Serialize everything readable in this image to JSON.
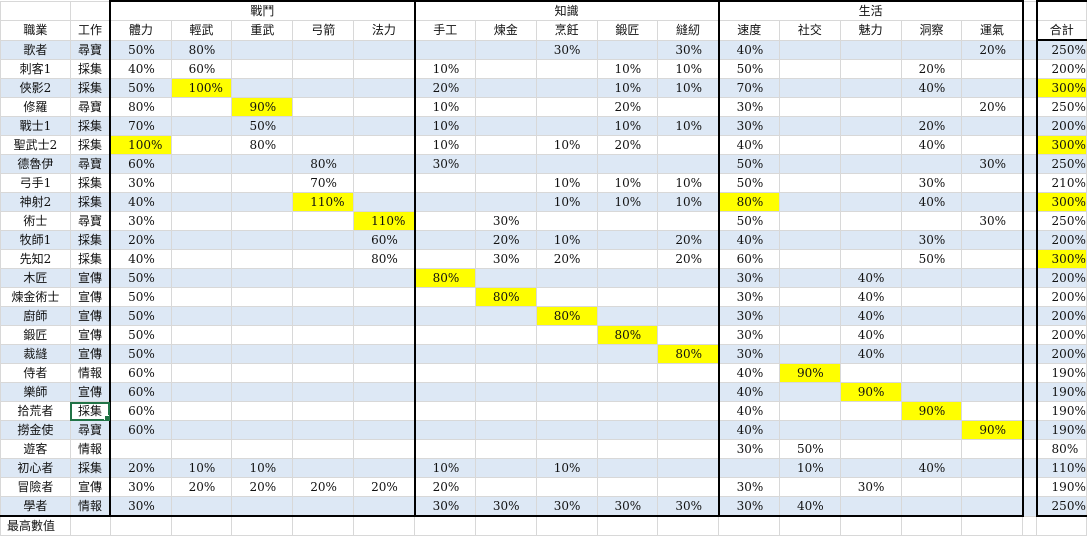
{
  "sheet": {
    "header": {
      "profession": "職業",
      "work": "工作",
      "groups": [
        "戰鬥",
        "知識",
        "生活"
      ],
      "columns": [
        "體力",
        "輕武",
        "重武",
        "弓箭",
        "法力",
        "手工",
        "煉金",
        "烹飪",
        "鍛匠",
        "縫紉",
        "速度",
        "社交",
        "魅力",
        "洞察",
        "運氣"
      ],
      "total": "合計"
    },
    "rows": [
      {
        "name": "歌者",
        "job": "尋寶",
        "values": [
          "50%",
          "80%",
          "",
          "",
          "",
          "",
          "",
          "30%",
          "",
          "30%",
          "40%",
          "",
          "",
          "",
          "20%"
        ],
        "total": "250%",
        "hl": [],
        "hl_total": false
      },
      {
        "name": "刺客1",
        "job": "採集",
        "values": [
          "40%",
          "60%",
          "",
          "",
          "",
          "10%",
          "",
          "",
          "10%",
          "10%",
          "50%",
          "",
          "",
          "20%",
          ""
        ],
        "total": "200%",
        "hl": [],
        "hl_total": false
      },
      {
        "name": "俠影2",
        "job": "採集",
        "values": [
          "50%",
          "100%",
          "",
          "",
          "",
          "20%",
          "",
          "",
          "10%",
          "10%",
          "70%",
          "",
          "",
          "40%",
          ""
        ],
        "total": "300%",
        "hl": [
          1
        ],
        "hl_total": true
      },
      {
        "name": "修羅",
        "job": "尋寶",
        "values": [
          "80%",
          "",
          "90%",
          "",
          "",
          "10%",
          "",
          "",
          "20%",
          "",
          "30%",
          "",
          "",
          "",
          "20%"
        ],
        "total": "250%",
        "hl": [
          2
        ],
        "hl_total": false
      },
      {
        "name": "戰士1",
        "job": "採集",
        "values": [
          "70%",
          "",
          "50%",
          "",
          "",
          "10%",
          "",
          "",
          "10%",
          "10%",
          "30%",
          "",
          "",
          "20%",
          ""
        ],
        "total": "200%",
        "hl": [],
        "hl_total": false
      },
      {
        "name": "聖武士2",
        "job": "採集",
        "values": [
          "100%",
          "",
          "80%",
          "",
          "",
          "10%",
          "",
          "10%",
          "20%",
          "",
          "40%",
          "",
          "",
          "40%",
          ""
        ],
        "total": "300%",
        "hl": [
          0
        ],
        "hl_total": true
      },
      {
        "name": "德魯伊",
        "job": "尋寶",
        "values": [
          "60%",
          "",
          "",
          "80%",
          "",
          "30%",
          "",
          "",
          "",
          "",
          "50%",
          "",
          "",
          "",
          "30%"
        ],
        "total": "250%",
        "hl": [],
        "hl_total": false
      },
      {
        "name": "弓手1",
        "job": "採集",
        "values": [
          "30%",
          "",
          "",
          "70%",
          "",
          "",
          "",
          "10%",
          "10%",
          "10%",
          "50%",
          "",
          "",
          "30%",
          ""
        ],
        "total": "210%",
        "hl": [],
        "hl_total": false
      },
      {
        "name": "神射2",
        "job": "採集",
        "values": [
          "40%",
          "",
          "",
          "110%",
          "",
          "",
          "",
          "10%",
          "10%",
          "10%",
          "80%",
          "",
          "",
          "40%",
          ""
        ],
        "total": "300%",
        "hl": [
          3,
          10
        ],
        "hl_total": true
      },
      {
        "name": "術士",
        "job": "尋寶",
        "values": [
          "30%",
          "",
          "",
          "",
          "110%",
          "",
          "30%",
          "",
          "",
          "",
          "50%",
          "",
          "",
          "",
          "30%"
        ],
        "total": "250%",
        "hl": [
          4
        ],
        "hl_total": false
      },
      {
        "name": "牧師1",
        "job": "採集",
        "values": [
          "20%",
          "",
          "",
          "",
          "60%",
          "",
          "20%",
          "10%",
          "",
          "20%",
          "40%",
          "",
          "",
          "30%",
          ""
        ],
        "total": "200%",
        "hl": [],
        "hl_total": false
      },
      {
        "name": "先知2",
        "job": "採集",
        "values": [
          "40%",
          "",
          "",
          "",
          "80%",
          "",
          "30%",
          "20%",
          "",
          "20%",
          "60%",
          "",
          "",
          "50%",
          ""
        ],
        "total": "300%",
        "hl": [],
        "hl_total": true
      },
      {
        "name": "木匠",
        "job": "宣傳",
        "values": [
          "50%",
          "",
          "",
          "",
          "",
          "80%",
          "",
          "",
          "",
          "",
          "30%",
          "",
          "40%",
          "",
          ""
        ],
        "total": "200%",
        "hl": [
          5
        ],
        "hl_total": false
      },
      {
        "name": "煉金術士",
        "job": "宣傳",
        "values": [
          "50%",
          "",
          "",
          "",
          "",
          "",
          "80%",
          "",
          "",
          "",
          "30%",
          "",
          "40%",
          "",
          ""
        ],
        "total": "200%",
        "hl": [
          6
        ],
        "hl_total": false
      },
      {
        "name": "廚師",
        "job": "宣傳",
        "values": [
          "50%",
          "",
          "",
          "",
          "",
          "",
          "",
          "80%",
          "",
          "",
          "30%",
          "",
          "40%",
          "",
          ""
        ],
        "total": "200%",
        "hl": [
          7
        ],
        "hl_total": false
      },
      {
        "name": "鍛匠",
        "job": "宣傳",
        "values": [
          "50%",
          "",
          "",
          "",
          "",
          "",
          "",
          "",
          "80%",
          "",
          "30%",
          "",
          "40%",
          "",
          ""
        ],
        "total": "200%",
        "hl": [
          8
        ],
        "hl_total": false
      },
      {
        "name": "裁縫",
        "job": "宣傳",
        "values": [
          "50%",
          "",
          "",
          "",
          "",
          "",
          "",
          "",
          "",
          "80%",
          "30%",
          "",
          "40%",
          "",
          ""
        ],
        "total": "200%",
        "hl": [
          9
        ],
        "hl_total": false
      },
      {
        "name": "侍者",
        "job": "情報",
        "values": [
          "60%",
          "",
          "",
          "",
          "",
          "",
          "",
          "",
          "",
          "",
          "40%",
          "90%",
          "",
          "",
          ""
        ],
        "total": "190%",
        "hl": [
          11
        ],
        "hl_total": false
      },
      {
        "name": "樂師",
        "job": "宣傳",
        "values": [
          "60%",
          "",
          "",
          "",
          "",
          "",
          "",
          "",
          "",
          "",
          "40%",
          "",
          "90%",
          "",
          ""
        ],
        "total": "190%",
        "hl": [
          12
        ],
        "hl_total": false
      },
      {
        "name": "拾荒者",
        "job": "採集",
        "values": [
          "60%",
          "",
          "",
          "",
          "",
          "",
          "",
          "",
          "",
          "",
          "40%",
          "",
          "",
          "90%",
          ""
        ],
        "total": "190%",
        "hl": [
          13
        ],
        "hl_total": false
      },
      {
        "name": "撈金使",
        "job": "尋寶",
        "values": [
          "60%",
          "",
          "",
          "",
          "",
          "",
          "",
          "",
          "",
          "",
          "40%",
          "",
          "",
          "",
          "90%"
        ],
        "total": "190%",
        "hl": [
          14
        ],
        "hl_total": false
      },
      {
        "name": "遊客",
        "job": "情報",
        "values": [
          "",
          "",
          "",
          "",
          "",
          "",
          "",
          "",
          "",
          "",
          "30%",
          "50%",
          "",
          "",
          ""
        ],
        "total": "80%",
        "hl": [],
        "hl_total": false
      },
      {
        "name": "初心者",
        "job": "採集",
        "values": [
          "20%",
          "10%",
          "10%",
          "",
          "",
          "10%",
          "",
          "10%",
          "",
          "",
          "",
          "10%",
          "",
          "40%",
          ""
        ],
        "total": "110%",
        "hl": [],
        "hl_total": false
      },
      {
        "name": "冒險者",
        "job": "宣傳",
        "values": [
          "30%",
          "20%",
          "20%",
          "20%",
          "20%",
          "20%",
          "",
          "",
          "",
          "",
          "30%",
          "",
          "30%",
          "",
          ""
        ],
        "total": "190%",
        "hl": [],
        "hl_total": false
      },
      {
        "name": "學者",
        "job": "情報",
        "values": [
          "30%",
          "",
          "",
          "",
          "",
          "30%",
          "30%",
          "30%",
          "30%",
          "30%",
          "30%",
          "40%",
          "",
          "",
          ""
        ],
        "total": "250%",
        "hl": [],
        "hl_total": false
      }
    ],
    "legend": "最高數值",
    "colors": {
      "highlight": "#ffff00",
      "band": "#dde8f5",
      "grid": "#d8d8d8",
      "border": "#000000",
      "selection": "#217346"
    },
    "selected_cell": "拾荒者 / 工作"
  }
}
